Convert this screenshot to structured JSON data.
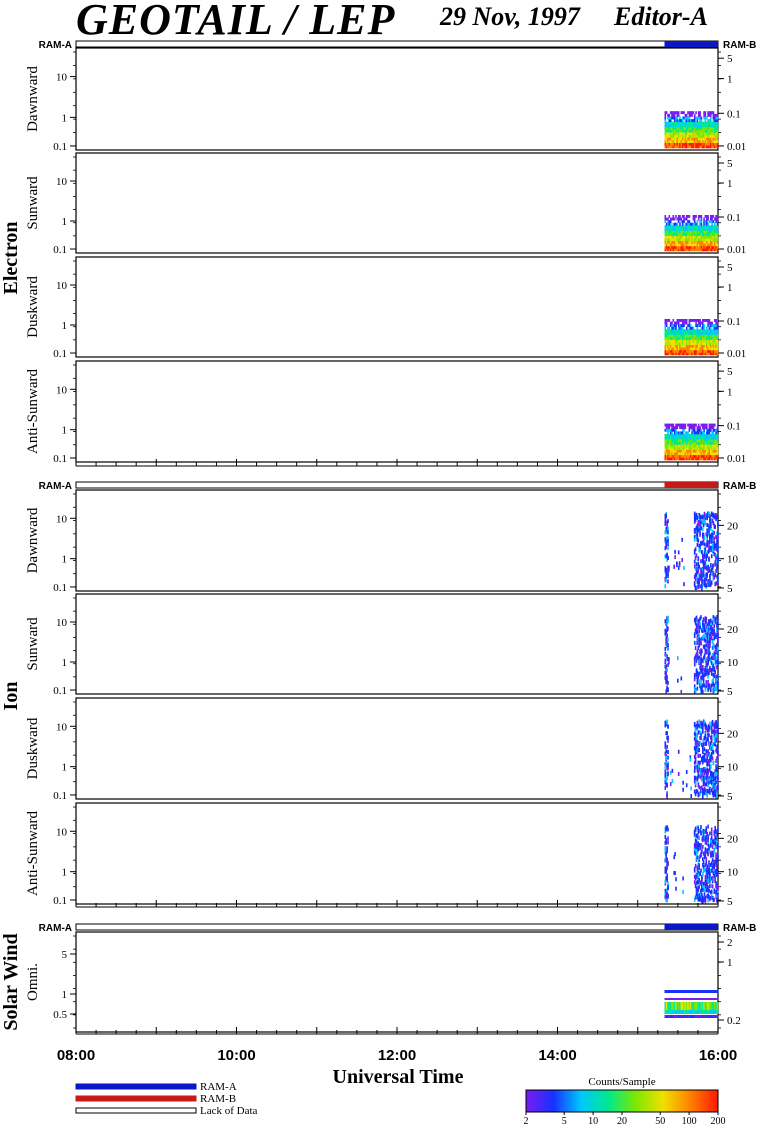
{
  "header": {
    "title": "GEOTAIL / LEP",
    "date": "29 Nov, 1997",
    "editor": "Editor-A"
  },
  "chart_data": {
    "type": "heatmap",
    "x_axis": {
      "label": "Universal Time",
      "range": [
        "08:00",
        "16:00"
      ],
      "ticks": [
        "08:00",
        "10:00",
        "12:00",
        "14:00",
        "16:00"
      ]
    },
    "groups": [
      {
        "name": "Electron",
        "mode_bar": {
          "left": "RAM-A",
          "right": "RAM-B",
          "active_color": "#0b18c8",
          "active_from": "15:20",
          "active_to": "16:00"
        },
        "panels": [
          {
            "name": "Dawnward",
            "left_ticks": [
              "10",
              "1",
              "0.1"
            ],
            "right_ticks": [
              "5",
              "1",
              "0.1",
              "0.01"
            ]
          },
          {
            "name": "Sunward",
            "left_ticks": [
              "10",
              "1",
              "0.1"
            ],
            "right_ticks": [
              "5",
              "1",
              "0.1",
              "0.01"
            ]
          },
          {
            "name": "Duskward",
            "left_ticks": [
              "10",
              "1",
              "0.1"
            ],
            "right_ticks": [
              "5",
              "1",
              "0.1",
              "0.01"
            ]
          },
          {
            "name": "Anti-Sunward",
            "left_ticks": [
              "10",
              "1",
              "0.1"
            ],
            "right_ticks": [
              "5",
              "1",
              "0.1",
              "0.01"
            ]
          }
        ]
      },
      {
        "name": "Ion",
        "mode_bar": {
          "left": "RAM-A",
          "right": "RAM-B",
          "active_color": "#c81818",
          "active_from": "15:20",
          "active_to": "16:00"
        },
        "panels": [
          {
            "name": "Dawnward",
            "left_ticks": [
              "10",
              "1",
              "0.1"
            ],
            "right_ticks": [
              "20",
              "10",
              "5"
            ]
          },
          {
            "name": "Sunward",
            "left_ticks": [
              "10",
              "1",
              "0.1"
            ],
            "right_ticks": [
              "20",
              "10",
              "5"
            ]
          },
          {
            "name": "Duskward",
            "left_ticks": [
              "10",
              "1",
              "0.1"
            ],
            "right_ticks": [
              "20",
              "10",
              "5"
            ]
          },
          {
            "name": "Anti-Sunward",
            "left_ticks": [
              "10",
              "1",
              "0.1"
            ],
            "right_ticks": [
              "20",
              "10",
              "5"
            ]
          }
        ]
      },
      {
        "name": "Solar Wind",
        "mode_bar": {
          "left": "RAM-A",
          "right": "RAM-B",
          "active_color": "#0b18c8",
          "active_from": "15:20",
          "active_to": "16:00"
        },
        "panels": [
          {
            "name": "Omni.",
            "left_ticks": [
              "5",
              "1",
              "0.5"
            ],
            "right_ticks": [
              "2",
              "1",
              "0.2"
            ]
          }
        ]
      }
    ],
    "data_interval": {
      "start": "15:20",
      "end": "16:00"
    },
    "colorbar": {
      "title": "Counts/Sample",
      "ticks": [
        "2",
        "5",
        "10",
        "20",
        "50",
        "100",
        "200"
      ],
      "colors": [
        "#7a1cf0",
        "#1830ff",
        "#00c8ff",
        "#00e890",
        "#7ce800",
        "#f0e000",
        "#ff8000",
        "#ff1800"
      ]
    },
    "legend": [
      {
        "label": "RAM-A",
        "color": "#0b18c8"
      },
      {
        "label": "RAM-B",
        "color": "#c81818"
      },
      {
        "label": "Lack of Data",
        "color": "#ffffff"
      }
    ]
  }
}
